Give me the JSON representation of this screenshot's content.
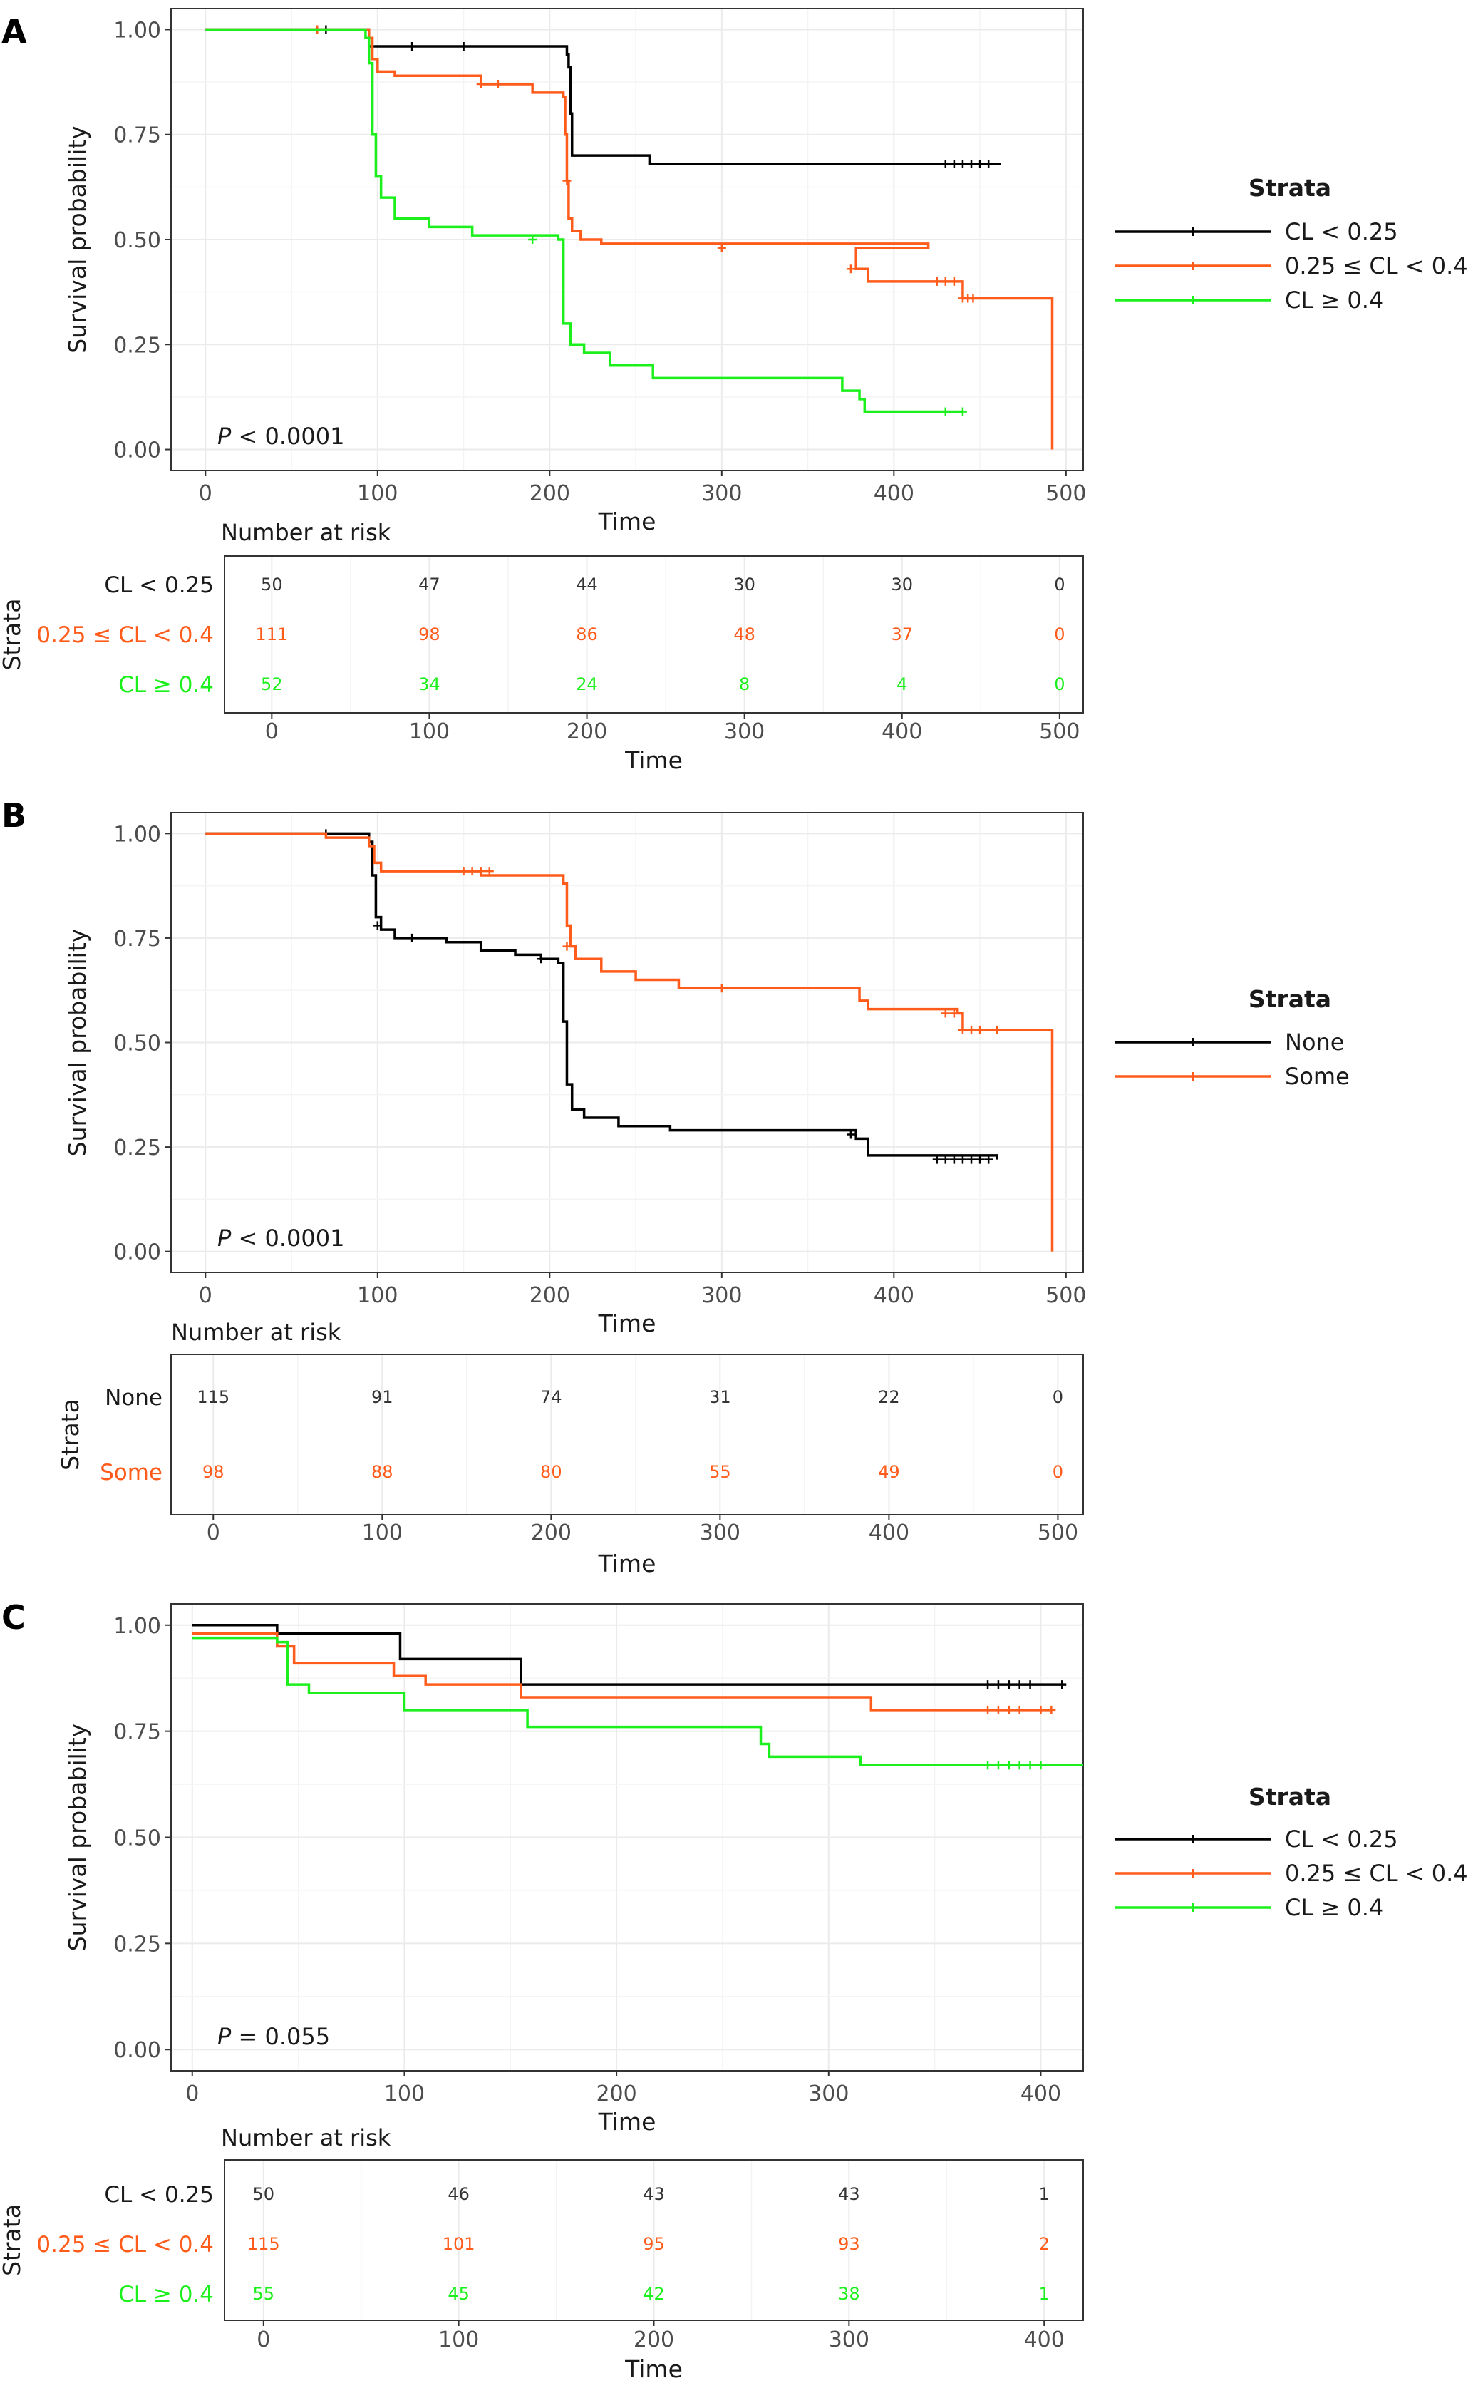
{
  "panels": [
    {
      "letter": "A",
      "pvalue": {
        "symbol": "P",
        "text": " < 0.0001"
      },
      "legend": {
        "title": "Strata"
      },
      "risk": {
        "title": "Number at risk",
        "strata_axis_title": "Strata",
        "xlabel": "Time"
      },
      "groups": [
        {
          "label": "CL < 0.25",
          "color": "#000000",
          "risk": [
            "50",
            "47",
            "44",
            "30",
            "30",
            "0"
          ]
        },
        {
          "label": "0.25 ≤ CL < 0.4",
          "color": "#ff5c1c",
          "risk": [
            "111",
            "98",
            "86",
            "48",
            "37",
            "0"
          ]
        },
        {
          "label": "CL ≥ 0.4",
          "color": "#1cf01c",
          "risk": [
            "52",
            "34",
            "24",
            "8",
            "4",
            "0"
          ]
        }
      ]
    },
    {
      "letter": "B",
      "pvalue": {
        "symbol": "P",
        "text": " < 0.0001"
      },
      "legend": {
        "title": "Strata"
      },
      "risk": {
        "title": "Number at risk",
        "strata_axis_title": "Strata",
        "xlabel": "Time"
      },
      "groups": [
        {
          "label": "None",
          "color": "#000000",
          "risk": [
            "115",
            "91",
            "74",
            "31",
            "22",
            "0"
          ]
        },
        {
          "label": "Some",
          "color": "#ff5c1c",
          "risk": [
            "98",
            "88",
            "80",
            "55",
            "49",
            "0"
          ]
        }
      ]
    },
    {
      "letter": "C",
      "pvalue": {
        "symbol": "P",
        "text": " = 0.055"
      },
      "legend": {
        "title": "Strata"
      },
      "risk": {
        "title": "Number at risk",
        "strata_axis_title": "Strata",
        "xlabel": "Time"
      },
      "groups": [
        {
          "label": "CL < 0.25",
          "color": "#000000",
          "risk": [
            "50",
            "46",
            "43",
            "43",
            "1"
          ]
        },
        {
          "label": "0.25 ≤ CL < 0.4",
          "color": "#ff5c1c",
          "risk": [
            "115",
            "101",
            "95",
            "93",
            "2"
          ]
        },
        {
          "label": "CL ≥ 0.4",
          "color": "#1cf01c",
          "risk": [
            "55",
            "45",
            "42",
            "38",
            "1"
          ]
        }
      ]
    }
  ],
  "chart_data": [
    {
      "type": "line",
      "subtype": "kaplan-meier",
      "panel": "A",
      "title": "",
      "xlabel": "Time",
      "ylabel": "Survival probability",
      "xlim": [
        -20,
        510
      ],
      "ylim": [
        -0.05,
        1.05
      ],
      "x_ticks": [
        0,
        100,
        200,
        300,
        400,
        500
      ],
      "y_ticks": [
        "0.00",
        "0.25",
        "0.50",
        "0.75",
        "1.00"
      ],
      "grid": true,
      "legend_position": "right",
      "risk_times": [
        0,
        100,
        200,
        300,
        400,
        500
      ],
      "risk_xlim": [
        -30,
        515
      ],
      "series": [
        {
          "name": "CL < 0.25",
          "steps": [
            [
              0,
              1.0
            ],
            [
              95,
              0.96
            ],
            [
              210,
              0.94
            ],
            [
              211,
              0.91
            ],
            [
              212,
              0.8
            ],
            [
              213,
              0.7
            ],
            [
              258,
              0.68
            ],
            [
              462,
              0.68
            ]
          ],
          "censors": [
            [
              70,
              1.0
            ],
            [
              120,
              0.96
            ],
            [
              150,
              0.96
            ],
            [
              430,
              0.68
            ],
            [
              435,
              0.68
            ],
            [
              440,
              0.68
            ],
            [
              445,
              0.68
            ],
            [
              450,
              0.68
            ],
            [
              455,
              0.68
            ]
          ]
        },
        {
          "name": "0.25 ≤ CL < 0.4",
          "steps": [
            [
              0,
              1.0
            ],
            [
              95,
              0.98
            ],
            [
              97,
              0.93
            ],
            [
              100,
              0.9
            ],
            [
              110,
              0.89
            ],
            [
              160,
              0.87
            ],
            [
              190,
              0.85
            ],
            [
              208,
              0.84
            ],
            [
              209,
              0.75
            ],
            [
              210,
              0.64
            ],
            [
              211,
              0.55
            ],
            [
              213,
              0.52
            ],
            [
              218,
              0.5
            ],
            [
              230,
              0.49
            ],
            [
              420,
              0.48
            ],
            [
              378,
              0.43
            ],
            [
              385,
              0.4
            ],
            [
              440,
              0.36
            ],
            [
              492,
              0.0
            ]
          ],
          "censors": [
            [
              65,
              1.0
            ],
            [
              160,
              0.87
            ],
            [
              170,
              0.87
            ],
            [
              210,
              0.64
            ],
            [
              300,
              0.48
            ],
            [
              375,
              0.43
            ],
            [
              425,
              0.4
            ],
            [
              430,
              0.4
            ],
            [
              435,
              0.4
            ],
            [
              440,
              0.36
            ],
            [
              443,
              0.36
            ],
            [
              446,
              0.36
            ]
          ]
        },
        {
          "name": "CL ≥ 0.4",
          "steps": [
            [
              0,
              1.0
            ],
            [
              93,
              0.98
            ],
            [
              95,
              0.92
            ],
            [
              97,
              0.75
            ],
            [
              99,
              0.65
            ],
            [
              102,
              0.6
            ],
            [
              110,
              0.55
            ],
            [
              130,
              0.53
            ],
            [
              155,
              0.51
            ],
            [
              205,
              0.5
            ],
            [
              208,
              0.3
            ],
            [
              212,
              0.25
            ],
            [
              220,
              0.23
            ],
            [
              235,
              0.2
            ],
            [
              260,
              0.17
            ],
            [
              370,
              0.14
            ],
            [
              380,
              0.12
            ],
            [
              383,
              0.09
            ],
            [
              440,
              0.09
            ]
          ],
          "censors": [
            [
              190,
              0.5
            ],
            [
              430,
              0.09
            ],
            [
              440,
              0.09
            ]
          ]
        }
      ]
    },
    {
      "type": "line",
      "subtype": "kaplan-meier",
      "panel": "B",
      "title": "",
      "xlabel": "Time",
      "ylabel": "Survival probability",
      "xlim": [
        -20,
        510
      ],
      "ylim": [
        -0.05,
        1.05
      ],
      "x_ticks": [
        0,
        100,
        200,
        300,
        400,
        500
      ],
      "y_ticks": [
        "0.00",
        "0.25",
        "0.50",
        "0.75",
        "1.00"
      ],
      "grid": true,
      "legend_position": "right",
      "risk_times": [
        0,
        100,
        200,
        300,
        400,
        500
      ],
      "risk_xlim": [
        -25,
        515
      ],
      "series": [
        {
          "name": "None",
          "steps": [
            [
              0,
              1.0
            ],
            [
              95,
              0.98
            ],
            [
              97,
              0.9
            ],
            [
              99,
              0.8
            ],
            [
              102,
              0.77
            ],
            [
              110,
              0.75
            ],
            [
              140,
              0.74
            ],
            [
              160,
              0.72
            ],
            [
              180,
              0.71
            ],
            [
              195,
              0.7
            ],
            [
              205,
              0.69
            ],
            [
              208,
              0.55
            ],
            [
              210,
              0.4
            ],
            [
              213,
              0.34
            ],
            [
              220,
              0.32
            ],
            [
              240,
              0.3
            ],
            [
              270,
              0.29
            ],
            [
              378,
              0.27
            ],
            [
              385,
              0.23
            ],
            [
              460,
              0.22
            ]
          ],
          "censors": [
            [
              70,
              1.0
            ],
            [
              100,
              0.78
            ],
            [
              120,
              0.75
            ],
            [
              195,
              0.7
            ],
            [
              375,
              0.28
            ],
            [
              425,
              0.22
            ],
            [
              430,
              0.22
            ],
            [
              435,
              0.22
            ],
            [
              440,
              0.22
            ],
            [
              445,
              0.22
            ],
            [
              450,
              0.22
            ],
            [
              455,
              0.22
            ]
          ]
        },
        {
          "name": "Some",
          "steps": [
            [
              0,
              1.0
            ],
            [
              70,
              0.99
            ],
            [
              95,
              0.97
            ],
            [
              98,
              0.93
            ],
            [
              102,
              0.91
            ],
            [
              160,
              0.9
            ],
            [
              208,
              0.88
            ],
            [
              210,
              0.78
            ],
            [
              212,
              0.73
            ],
            [
              215,
              0.7
            ],
            [
              230,
              0.67
            ],
            [
              250,
              0.65
            ],
            [
              275,
              0.63
            ],
            [
              380,
              0.6
            ],
            [
              385,
              0.58
            ],
            [
              437,
              0.57
            ],
            [
              440,
              0.53
            ],
            [
              492,
              0.0
            ]
          ],
          "censors": [
            [
              150,
              0.91
            ],
            [
              155,
              0.91
            ],
            [
              160,
              0.91
            ],
            [
              165,
              0.91
            ],
            [
              210,
              0.73
            ],
            [
              300,
              0.63
            ],
            [
              430,
              0.57
            ],
            [
              435,
              0.57
            ],
            [
              440,
              0.53
            ],
            [
              445,
              0.53
            ],
            [
              450,
              0.53
            ],
            [
              460,
              0.53
            ]
          ]
        }
      ]
    },
    {
      "type": "line",
      "subtype": "kaplan-meier",
      "panel": "C",
      "title": "",
      "xlabel": "Time",
      "ylabel": "Survival probability",
      "xlim": [
        -10,
        420
      ],
      "ylim": [
        -0.05,
        1.05
      ],
      "x_ticks": [
        0,
        100,
        200,
        300,
        400
      ],
      "y_ticks": [
        "0.00",
        "0.25",
        "0.50",
        "0.75",
        "1.00"
      ],
      "grid": true,
      "legend_position": "right",
      "risk_times": [
        0,
        100,
        200,
        300,
        400
      ],
      "risk_xlim": [
        -20,
        420
      ],
      "series": [
        {
          "name": "CL < 0.25",
          "steps": [
            [
              0,
              1.0
            ],
            [
              40,
              0.98
            ],
            [
              98,
              0.92
            ],
            [
              155,
              0.86
            ],
            [
              412,
              0.86
            ]
          ],
          "censors": [
            [
              375,
              0.86
            ],
            [
              380,
              0.86
            ],
            [
              385,
              0.86
            ],
            [
              390,
              0.86
            ],
            [
              395,
              0.86
            ],
            [
              410,
              0.86
            ]
          ]
        },
        {
          "name": "0.25 ≤ CL < 0.4",
          "steps": [
            [
              0,
              0.98
            ],
            [
              40,
              0.95
            ],
            [
              48,
              0.91
            ],
            [
              95,
              0.88
            ],
            [
              110,
              0.86
            ],
            [
              155,
              0.83
            ],
            [
              320,
              0.8
            ],
            [
              405,
              0.8
            ]
          ],
          "censors": [
            [
              375,
              0.8
            ],
            [
              380,
              0.8
            ],
            [
              385,
              0.8
            ],
            [
              390,
              0.8
            ],
            [
              400,
              0.8
            ],
            [
              405,
              0.8
            ]
          ]
        },
        {
          "name": "CL ≥ 0.4",
          "steps": [
            [
              0,
              0.97
            ],
            [
              40,
              0.96
            ],
            [
              45,
              0.86
            ],
            [
              55,
              0.84
            ],
            [
              100,
              0.8
            ],
            [
              158,
              0.76
            ],
            [
              268,
              0.72
            ],
            [
              272,
              0.69
            ],
            [
              315,
              0.67
            ],
            [
              420,
              0.67
            ]
          ],
          "censors": [
            [
              375,
              0.67
            ],
            [
              380,
              0.67
            ],
            [
              385,
              0.67
            ],
            [
              390,
              0.67
            ],
            [
              395,
              0.67
            ],
            [
              400,
              0.67
            ]
          ]
        }
      ]
    }
  ]
}
